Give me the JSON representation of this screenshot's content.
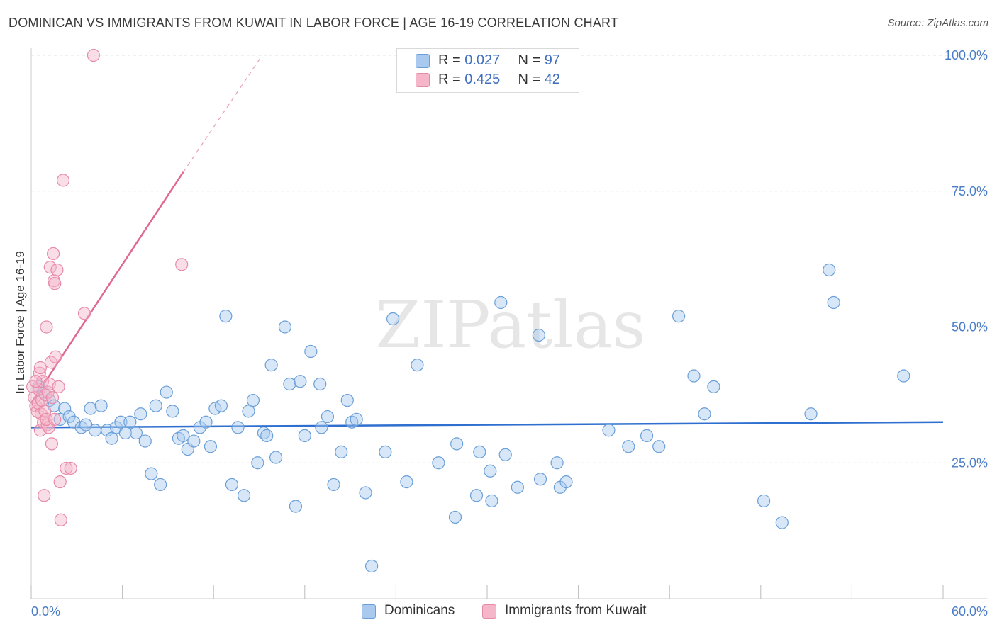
{
  "title": "DOMINICAN VS IMMIGRANTS FROM KUWAIT IN LABOR FORCE | AGE 16-19 CORRELATION CHART",
  "source": "Source: ZipAtlas.com",
  "watermark": "ZIPatlas",
  "legend_top": {
    "rows": [
      {
        "r_label": "R = ",
        "r_value": "0.027",
        "n_label": "N = ",
        "n_value": "97",
        "color": "#a9c9ef"
      },
      {
        "r_label": "R = ",
        "r_value": "0.425",
        "n_label": "N = ",
        "n_value": "42",
        "color": "#f5b6c9"
      }
    ]
  },
  "legend_bottom": [
    {
      "label": "Dominicans",
      "color": "#a9c9ef"
    },
    {
      "label": "Immigrants from Kuwait",
      "color": "#f5b6c9"
    }
  ],
  "chart_data": {
    "type": "scatter",
    "title": "DOMINICAN VS IMMIGRANTS FROM KUWAIT IN LABOR FORCE | AGE 16-19 CORRELATION CHART",
    "xlabel": "",
    "ylabel": "In Labor Force | Age 16-19",
    "xlim": [
      0,
      60
    ],
    "ylim": [
      0,
      100
    ],
    "x_tick_labels": [
      "0.0%",
      "60.0%"
    ],
    "y_tick_labels": [
      "25.0%",
      "50.0%",
      "75.0%",
      "100.0%"
    ],
    "y_ticks": [
      25,
      50,
      75,
      100
    ],
    "grid": true,
    "series": [
      {
        "name": "Dominicans",
        "color": "#a9c9ef",
        "stroke": "#6a9fd8",
        "trend": {
          "x0": 0,
          "y0": 31.5,
          "x1": 60,
          "y1": 32.5,
          "color": "#2f6fcf"
        },
        "points": [
          [
            0.5,
            39
          ],
          [
            0.8,
            38
          ],
          [
            1.2,
            36.5
          ],
          [
            1.5,
            35.5
          ],
          [
            1.9,
            33
          ],
          [
            2.2,
            35
          ],
          [
            2.5,
            33.5
          ],
          [
            2.8,
            32.5
          ],
          [
            3.3,
            31.5
          ],
          [
            3.6,
            32
          ],
          [
            3.9,
            35
          ],
          [
            4.2,
            31
          ],
          [
            4.6,
            35.5
          ],
          [
            5,
            31
          ],
          [
            5.3,
            29.5
          ],
          [
            5.6,
            31.5
          ],
          [
            5.9,
            32.5
          ],
          [
            6.2,
            30.5
          ],
          [
            6.5,
            32.5
          ],
          [
            6.9,
            30.5
          ],
          [
            7.2,
            34
          ],
          [
            7.5,
            29
          ],
          [
            7.9,
            23
          ],
          [
            8.2,
            35.5
          ],
          [
            8.5,
            21
          ],
          [
            8.9,
            38
          ],
          [
            9.3,
            34.5
          ],
          [
            9.7,
            29.5
          ],
          [
            10,
            30
          ],
          [
            10.3,
            27.5
          ],
          [
            10.7,
            29
          ],
          [
            11.1,
            31.5
          ],
          [
            11.5,
            32.5
          ],
          [
            11.8,
            28
          ],
          [
            12.1,
            35
          ],
          [
            12.5,
            35.5
          ],
          [
            12.8,
            52
          ],
          [
            13.2,
            21
          ],
          [
            13.6,
            31.5
          ],
          [
            14,
            19
          ],
          [
            14.3,
            34.5
          ],
          [
            14.6,
            36.5
          ],
          [
            14.9,
            25
          ],
          [
            15.3,
            30.5
          ],
          [
            15.5,
            30
          ],
          [
            15.8,
            43
          ],
          [
            16.1,
            26
          ],
          [
            16.7,
            50
          ],
          [
            17,
            39.5
          ],
          [
            17.4,
            17
          ],
          [
            17.7,
            40
          ],
          [
            18,
            30
          ],
          [
            18.4,
            45.5
          ],
          [
            19,
            39.5
          ],
          [
            19.1,
            31.5
          ],
          [
            19.5,
            33.5
          ],
          [
            19.9,
            21
          ],
          [
            20.4,
            27
          ],
          [
            20.8,
            36.5
          ],
          [
            21.1,
            32.5
          ],
          [
            21.4,
            33
          ],
          [
            22,
            19.5
          ],
          [
            22.4,
            6
          ],
          [
            23.3,
            27
          ],
          [
            23.8,
            51.5
          ],
          [
            24.7,
            21.5
          ],
          [
            25.4,
            43
          ],
          [
            26.8,
            25
          ],
          [
            27.9,
            15
          ],
          [
            28,
            28.5
          ],
          [
            29.3,
            19
          ],
          [
            29.5,
            27
          ],
          [
            30.2,
            23.5
          ],
          [
            30.3,
            18
          ],
          [
            30.9,
            54.5
          ],
          [
            31.2,
            26.5
          ],
          [
            32,
            20.5
          ],
          [
            33.4,
            48.5
          ],
          [
            33.5,
            22
          ],
          [
            34.6,
            25
          ],
          [
            34.8,
            20.5
          ],
          [
            35.2,
            21.5
          ],
          [
            38,
            31
          ],
          [
            39.3,
            28
          ],
          [
            40.5,
            30
          ],
          [
            41.3,
            28
          ],
          [
            42.6,
            52
          ],
          [
            43.6,
            41
          ],
          [
            44.3,
            34
          ],
          [
            44.9,
            39
          ],
          [
            48.2,
            18
          ],
          [
            49.4,
            14
          ],
          [
            51.3,
            34
          ],
          [
            52.5,
            60.5
          ],
          [
            52.8,
            54.5
          ],
          [
            57.4,
            41
          ]
        ]
      },
      {
        "name": "Immigrants from Kuwait",
        "color": "#f5b6c9",
        "stroke": "#e78aa8",
        "trend": {
          "x0": 0,
          "y0": 36,
          "x1": 10,
          "y1": 78.5,
          "color": "#e0688e"
        },
        "trend_extension": {
          "x0": 10,
          "y0": 78.5,
          "x1": 15.2,
          "y1": 100
        },
        "points": [
          [
            0.1,
            39
          ],
          [
            0.2,
            37
          ],
          [
            0.3,
            35.5
          ],
          [
            0.4,
            34.5
          ],
          [
            0.45,
            36
          ],
          [
            0.5,
            38.5
          ],
          [
            0.55,
            41.5
          ],
          [
            0.6,
            42.5
          ],
          [
            0.6,
            31
          ],
          [
            0.65,
            34
          ],
          [
            0.7,
            36.5
          ],
          [
            0.75,
            40
          ],
          [
            0.8,
            32.5
          ],
          [
            0.85,
            19
          ],
          [
            0.9,
            34.5
          ],
          [
            0.95,
            37.5
          ],
          [
            1,
            50
          ],
          [
            1.05,
            32
          ],
          [
            1.1,
            38
          ],
          [
            1.15,
            31.5
          ],
          [
            1.2,
            39.5
          ],
          [
            1.25,
            61
          ],
          [
            1.3,
            43.5
          ],
          [
            1.35,
            28.5
          ],
          [
            1.4,
            37
          ],
          [
            1.45,
            63.5
          ],
          [
            1.5,
            58.5
          ],
          [
            1.55,
            58
          ],
          [
            1.6,
            44.5
          ],
          [
            1.7,
            60.5
          ],
          [
            1.8,
            39
          ],
          [
            1.9,
            21.5
          ],
          [
            1.95,
            14.5
          ],
          [
            2.1,
            77
          ],
          [
            2.3,
            24
          ],
          [
            2.6,
            24
          ],
          [
            3.5,
            52.5
          ],
          [
            4.1,
            100
          ],
          [
            9.9,
            61.5
          ],
          [
            1.0,
            33
          ],
          [
            0.3,
            40
          ],
          [
            1.55,
            33
          ]
        ]
      }
    ]
  }
}
